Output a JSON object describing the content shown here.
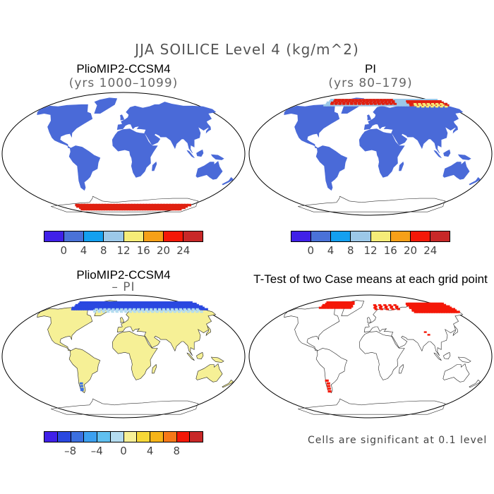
{
  "figure": {
    "title": "JJA SOILICE Level 4 (kg/m^2)"
  },
  "panels": {
    "p1": {
      "title": "PlioMIP2-CCSM4",
      "subtitle": "(yrs 1000–1099)"
    },
    "p2": {
      "title": "PI",
      "subtitle": "(yrs 80–179)"
    },
    "p3": {
      "title": "PlioMIP2-CCSM4",
      "subtitle": "– PI"
    },
    "p4": {
      "title": "T-Test of two Case means at each grid point",
      "footnote": "Cells are significant at 0.1 level"
    }
  },
  "colorbars": {
    "abs": {
      "colors": [
        "#4020e8",
        "#4a72d8",
        "#14a0f0",
        "#9cc8e8",
        "#f6ec78",
        "#f6a018",
        "#f41808",
        "#c82828"
      ],
      "labels": [
        "0",
        "4",
        "8",
        "12",
        "16",
        "20",
        "24"
      ]
    },
    "diff": {
      "colors": [
        "#4020e8",
        "#2a48e0",
        "#3c70e0",
        "#3ca0f0",
        "#60c0f0",
        "#b4dcf0",
        "#f6f096",
        "#f6d838",
        "#f6b418",
        "#f67818",
        "#f41808",
        "#c82828"
      ],
      "labels": [
        "–8",
        "–4",
        "0",
        "4",
        "8"
      ]
    }
  },
  "map_colors": {
    "land_abs": "#4a6ad8",
    "land_diff": "#f6f096",
    "significant": "#f41808",
    "high_values": "#e02010",
    "outline": "#000000"
  }
}
